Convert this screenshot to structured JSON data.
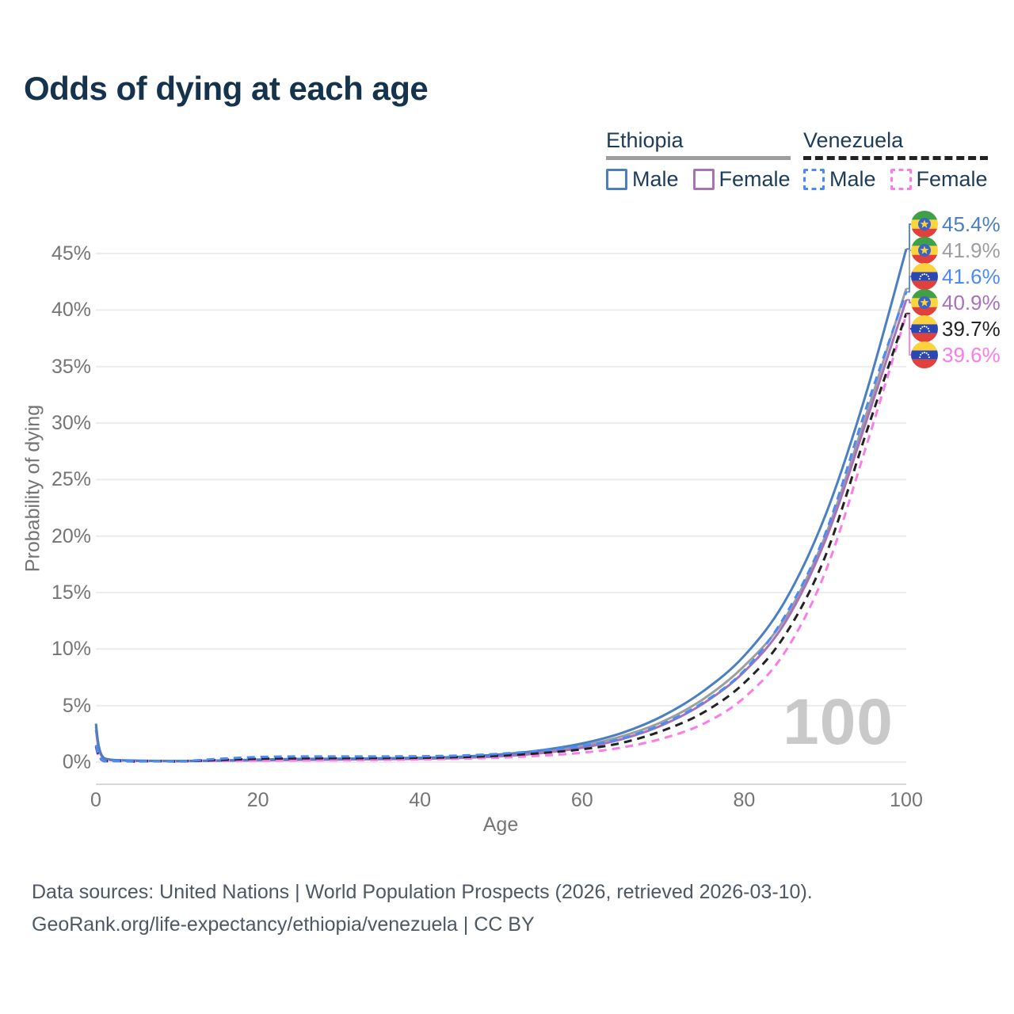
{
  "title": "Odds of dying at each age",
  "legend": {
    "groups": [
      {
        "label": "Ethiopia",
        "line_style": "solid",
        "line_color": "#9e9e9e",
        "items": [
          {
            "label": "Male",
            "color": "#4a7fc1",
            "dashed": false
          },
          {
            "label": "Female",
            "color": "#a971b8",
            "dashed": false
          }
        ]
      },
      {
        "label": "Venezuela",
        "line_style": "dashed",
        "line_color": "#222222",
        "items": [
          {
            "label": "Male",
            "color": "#4c8bf5",
            "dashed": true
          },
          {
            "label": "Female",
            "color": "#fb7ce8",
            "dashed": true
          }
        ]
      }
    ]
  },
  "watermark_age": "100",
  "footer": {
    "line1": "Data sources: United Nations | World Population Prospects (2026, retrieved 2026-03-10).",
    "line2": "GeoRank.org/life-expectancy/ethiopia/venezuela | CC BY"
  },
  "chart_data": {
    "type": "line",
    "title": "Odds of dying at each age",
    "xlabel": "Age",
    "ylabel": "Probability of dying",
    "xlim": [
      0,
      100
    ],
    "ylim": [
      0,
      47.5
    ],
    "xticks": [
      0,
      20,
      40,
      60,
      80,
      100
    ],
    "ytick_values": [
      0,
      5,
      10,
      15,
      20,
      25,
      30,
      35,
      40,
      45
    ],
    "ytick_labels": [
      "0%",
      "5%",
      "10%",
      "15%",
      "20%",
      "25%",
      "30%",
      "35%",
      "40%",
      "45%"
    ],
    "grid": "horizontal",
    "legend_position": "top-right",
    "unit": "percent probability of dying at each age",
    "ages": [
      0,
      1,
      5,
      10,
      15,
      20,
      25,
      30,
      35,
      40,
      45,
      50,
      55,
      60,
      65,
      70,
      75,
      80,
      85,
      90,
      95,
      100
    ],
    "series": [
      {
        "name": "Ethiopia Male",
        "country": "ethiopia",
        "sex": "male",
        "color": "#4a7fc1",
        "dash": "solid",
        "end_label": "45.4%",
        "values": [
          3.4,
          0.35,
          0.13,
          0.1,
          0.14,
          0.22,
          0.28,
          0.3,
          0.33,
          0.38,
          0.48,
          0.68,
          1.05,
          1.65,
          2.6,
          4.1,
          6.3,
          9.4,
          14.2,
          21.8,
          32.5,
          45.4
        ]
      },
      {
        "name": "Ethiopia Female",
        "country": "ethiopia",
        "sex": "female",
        "color": "#a971b8",
        "dash": "solid",
        "end_label": "40.9%",
        "values": [
          2.85,
          0.3,
          0.11,
          0.08,
          0.11,
          0.15,
          0.19,
          0.22,
          0.25,
          0.29,
          0.37,
          0.52,
          0.8,
          1.27,
          2.05,
          3.3,
          5.2,
          8.0,
          12.3,
          19.6,
          30.0,
          40.9
        ]
      },
      {
        "name": "Ethiopia",
        "country": "ethiopia",
        "sex": "both",
        "color": "#9e9e9e",
        "dash": "solid",
        "end_label": "41.9%",
        "values": [
          3.15,
          0.32,
          0.12,
          0.09,
          0.12,
          0.18,
          0.23,
          0.26,
          0.29,
          0.33,
          0.42,
          0.6,
          0.92,
          1.45,
          2.3,
          3.6,
          5.6,
          8.5,
          12.7,
          20.0,
          30.6,
          41.9
        ]
      },
      {
        "name": "Venezuela Male",
        "country": "venezuela",
        "sex": "male",
        "color": "#4c8bf5",
        "dash": "dashed",
        "end_label": "41.6%",
        "values": [
          1.5,
          0.1,
          0.05,
          0.06,
          0.28,
          0.45,
          0.5,
          0.5,
          0.5,
          0.52,
          0.58,
          0.74,
          1.02,
          1.42,
          2.1,
          3.4,
          5.3,
          8.1,
          12.9,
          20.2,
          31.2,
          41.6
        ]
      },
      {
        "name": "Venezuela Female",
        "country": "venezuela",
        "sex": "female",
        "color": "#fb7ce8",
        "dash": "dashed",
        "end_label": "39.6%",
        "values": [
          1.3,
          0.08,
          0.04,
          0.05,
          0.09,
          0.12,
          0.14,
          0.16,
          0.19,
          0.23,
          0.3,
          0.4,
          0.57,
          0.83,
          1.3,
          2.1,
          3.4,
          5.7,
          9.7,
          16.8,
          27.8,
          39.6
        ]
      },
      {
        "name": "Venezuela",
        "country": "venezuela",
        "sex": "both",
        "color": "#222222",
        "dash": "dashed",
        "end_label": "39.7%",
        "values": [
          1.4,
          0.09,
          0.05,
          0.05,
          0.18,
          0.29,
          0.33,
          0.34,
          0.35,
          0.38,
          0.44,
          0.57,
          0.8,
          1.13,
          1.72,
          2.8,
          4.4,
          7.0,
          11.2,
          18.2,
          29.0,
          39.7
        ]
      }
    ]
  }
}
